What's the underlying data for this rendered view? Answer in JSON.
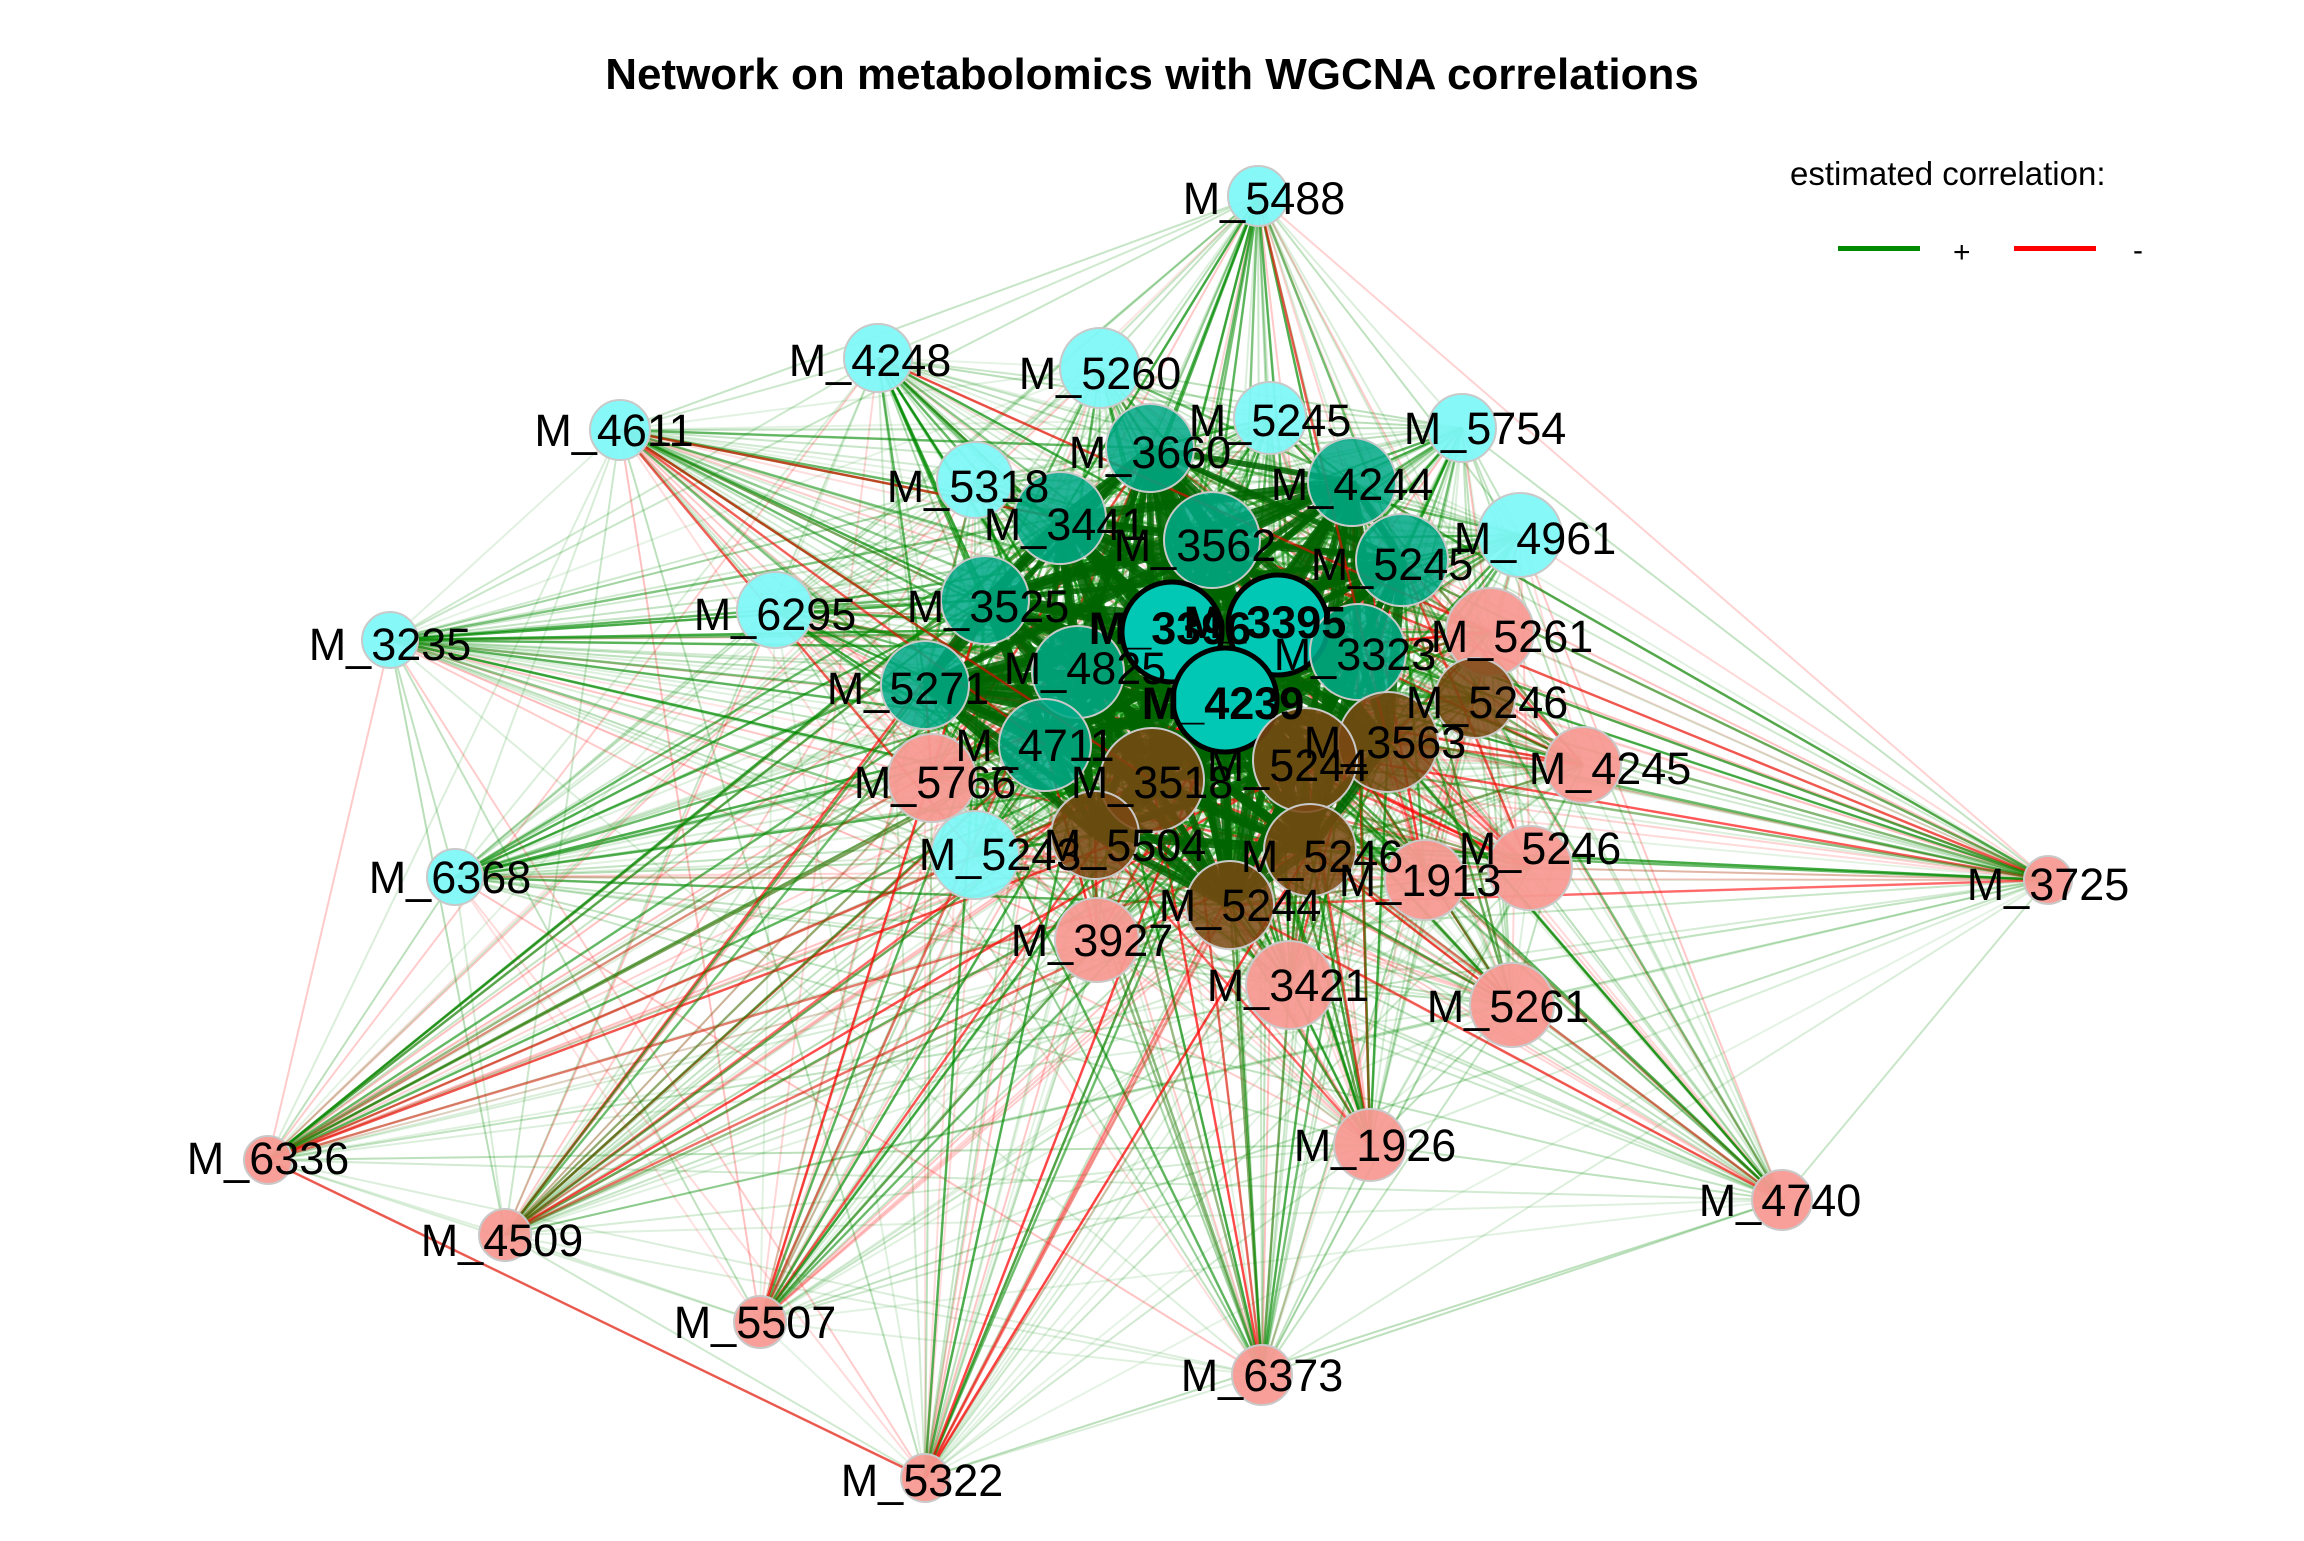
{
  "title": "Network on metabolomics with WGCNA correlations",
  "legend": {
    "title": "estimated correlation:",
    "positive": {
      "symbol": "+",
      "color": "#008a00"
    },
    "negative": {
      "symbol": "-",
      "color": "#ff0000"
    }
  },
  "colors": {
    "cyan_node": "#7ff8f8",
    "teal_node": "#00a887",
    "salmon_node": "#f79a92",
    "brown_node": "#7a4812",
    "hub_node": "#00c8b4"
  },
  "nodes": [
    {
      "id": "n1",
      "label": "M_5488",
      "group": "cyan"
    },
    {
      "id": "n2",
      "label": "M_4248",
      "group": "cyan"
    },
    {
      "id": "n3",
      "label": "M_5260",
      "group": "cyan"
    },
    {
      "id": "n4",
      "label": "M_4611",
      "group": "cyan"
    },
    {
      "id": "n5",
      "label": "M_5245",
      "group": "cyan"
    },
    {
      "id": "n6",
      "label": "M_5754",
      "group": "cyan"
    },
    {
      "id": "n7",
      "label": "M_3660",
      "group": "teal"
    },
    {
      "id": "n8",
      "label": "M_5318",
      "group": "cyan"
    },
    {
      "id": "n9",
      "label": "M_4244",
      "group": "teal"
    },
    {
      "id": "n10",
      "label": "M_3441",
      "group": "teal"
    },
    {
      "id": "n11",
      "label": "M_4961",
      "group": "cyan"
    },
    {
      "id": "n12",
      "label": "M_3562",
      "group": "teal"
    },
    {
      "id": "n13",
      "label": "M_5245",
      "group": "teal"
    },
    {
      "id": "n14",
      "label": "M_6295",
      "group": "cyan"
    },
    {
      "id": "n15",
      "label": "M_3525",
      "group": "teal"
    },
    {
      "id": "n16",
      "label": "M_3235",
      "group": "cyan"
    },
    {
      "id": "n17",
      "label": "M_3396",
      "group": "hub"
    },
    {
      "id": "n18",
      "label": "M_3395",
      "group": "hub"
    },
    {
      "id": "n19",
      "label": "M_3323",
      "group": "teal"
    },
    {
      "id": "n20",
      "label": "M_5261",
      "group": "salmon"
    },
    {
      "id": "n21",
      "label": "M_5271",
      "group": "teal"
    },
    {
      "id": "n22",
      "label": "M_4825",
      "group": "teal"
    },
    {
      "id": "n23",
      "label": "M_4239",
      "group": "hub"
    },
    {
      "id": "n24",
      "label": "M_5246",
      "group": "brown"
    },
    {
      "id": "n25",
      "label": "M_4711",
      "group": "teal"
    },
    {
      "id": "n26",
      "label": "M_3563",
      "group": "brown"
    },
    {
      "id": "n27",
      "label": "M_5244",
      "group": "brown"
    },
    {
      "id": "n28",
      "label": "M_3518",
      "group": "brown"
    },
    {
      "id": "n29",
      "label": "M_4245",
      "group": "salmon"
    },
    {
      "id": "n30",
      "label": "M_5766",
      "group": "salmon"
    },
    {
      "id": "n31",
      "label": "M_5243",
      "group": "cyan"
    },
    {
      "id": "n32",
      "label": "M_5504",
      "group": "brown"
    },
    {
      "id": "n33",
      "label": "M_5246",
      "group": "brown"
    },
    {
      "id": "n34",
      "label": "M_5246",
      "group": "salmon"
    },
    {
      "id": "n35",
      "label": "M_1913",
      "group": "salmon"
    },
    {
      "id": "n36",
      "label": "M_6368",
      "group": "cyan"
    },
    {
      "id": "n37",
      "label": "M_3725",
      "group": "salmon"
    },
    {
      "id": "n38",
      "label": "M_5244",
      "group": "brown"
    },
    {
      "id": "n39",
      "label": "M_3927",
      "group": "salmon"
    },
    {
      "id": "n40",
      "label": "M_3421",
      "group": "salmon"
    },
    {
      "id": "n41",
      "label": "M_5261",
      "group": "salmon"
    },
    {
      "id": "n42",
      "label": "M_1926",
      "group": "salmon"
    },
    {
      "id": "n43",
      "label": "M_6336",
      "group": "salmon"
    },
    {
      "id": "n44",
      "label": "M_4740",
      "group": "salmon"
    },
    {
      "id": "n45",
      "label": "M_4509",
      "group": "salmon"
    },
    {
      "id": "n46",
      "label": "M_5507",
      "group": "salmon"
    },
    {
      "id": "n47",
      "label": "M_6373",
      "group": "salmon"
    },
    {
      "id": "n48",
      "label": "M_5322",
      "group": "salmon"
    }
  ]
}
